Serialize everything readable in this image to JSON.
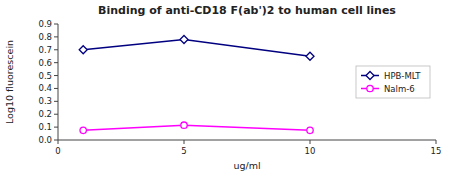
{
  "chart_data": {
    "type": "line",
    "title": "Binding of anti-CD18 F(ab')2 to human cell lines",
    "xlabel": "ug/ml",
    "ylabel": "Log10 fluorescein",
    "x": [
      1,
      5,
      10
    ],
    "series": [
      {
        "name": "HPB-MLT",
        "color": "#000080",
        "marker": "diamond",
        "values": [
          0.7,
          0.78,
          0.65
        ]
      },
      {
        "name": "Nalm-6",
        "color": "#FF00FF",
        "marker": "circle",
        "values": [
          0.075,
          0.115,
          0.075
        ]
      }
    ],
    "xlim": [
      0,
      15
    ],
    "ylim": [
      0,
      0.9
    ],
    "xticks": [
      0,
      5,
      10,
      15
    ],
    "yticks": [
      {
        "value": 0,
        "label": "0.0"
      },
      0.1,
      0.2,
      0.3,
      0.4,
      0.5,
      0.6,
      0.7,
      0.8,
      0.9
    ],
    "grid": false,
    "legend": "right"
  }
}
